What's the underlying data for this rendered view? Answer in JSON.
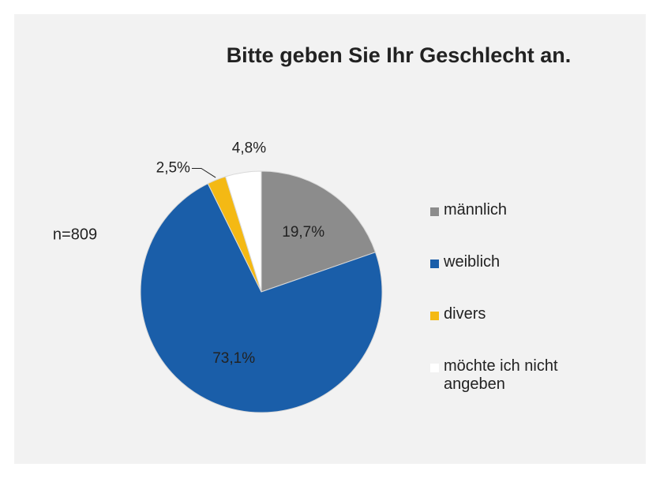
{
  "chart_data": {
    "type": "pie",
    "title": "Bitte geben Sie Ihr Geschlecht an.",
    "annotation": "n=809",
    "categories": [
      "männlich",
      "weiblich",
      "divers",
      "möchte ich nicht angeben"
    ],
    "values": [
      19.7,
      73.1,
      2.5,
      4.8
    ],
    "value_labels": [
      "19,7%",
      "73,1%",
      "2,5%",
      "4,8%"
    ],
    "colors": [
      "#8c8c8c",
      "#1a5ea9",
      "#f4b914",
      "#ffffff"
    ],
    "legend": "right"
  }
}
